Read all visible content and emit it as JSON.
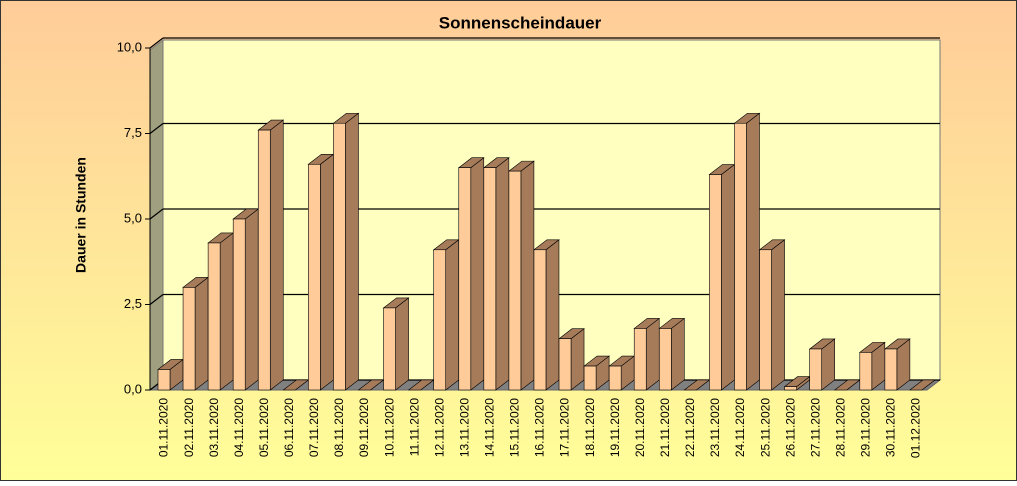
{
  "chart_data": {
    "type": "bar3d",
    "title": "Sonnenscheindauer",
    "y_label": "Dauer in Stunden",
    "categories": [
      "01.11.2020",
      "02.11.2020",
      "03.11.2020",
      "04.11.2020",
      "05.11.2020",
      "06.11.2020",
      "07.11.2020",
      "08.11.2020",
      "09.11.2020",
      "10.11.2020",
      "11.11.2020",
      "12.11.2020",
      "13.11.2020",
      "14.11.2020",
      "15.11.2020",
      "16.11.2020",
      "17.11.2020",
      "18.11.2020",
      "19.11.2020",
      "20.11.2020",
      "21.11.2020",
      "22.11.2020",
      "23.11.2020",
      "24.11.2020",
      "25.11.2020",
      "26.11.2020",
      "27.11.2020",
      "28.11.2020",
      "29.11.2020",
      "30.11.2020",
      "01.12.2020"
    ],
    "values": [
      0.6,
      3.0,
      4.3,
      5.0,
      7.6,
      0,
      6.6,
      7.8,
      0,
      2.4,
      0,
      4.1,
      6.5,
      6.5,
      6.4,
      4.1,
      1.5,
      0.7,
      0.7,
      1.8,
      1.8,
      0,
      6.3,
      7.8,
      4.1,
      0.1,
      1.2,
      0,
      1.1,
      1.2,
      0
    ],
    "color": "#ffcc99",
    "side_color": "#a57b5a",
    "ylim": [
      0,
      10
    ],
    "yticks": [
      {
        "value": 0,
        "label": "0,0"
      },
      {
        "value": 2.5,
        "label": "2,5"
      },
      {
        "value": 5,
        "label": "5,0"
      },
      {
        "value": 7.5,
        "label": "7,5"
      },
      {
        "value": 10,
        "label": "10,0"
      }
    ],
    "grid": true
  }
}
